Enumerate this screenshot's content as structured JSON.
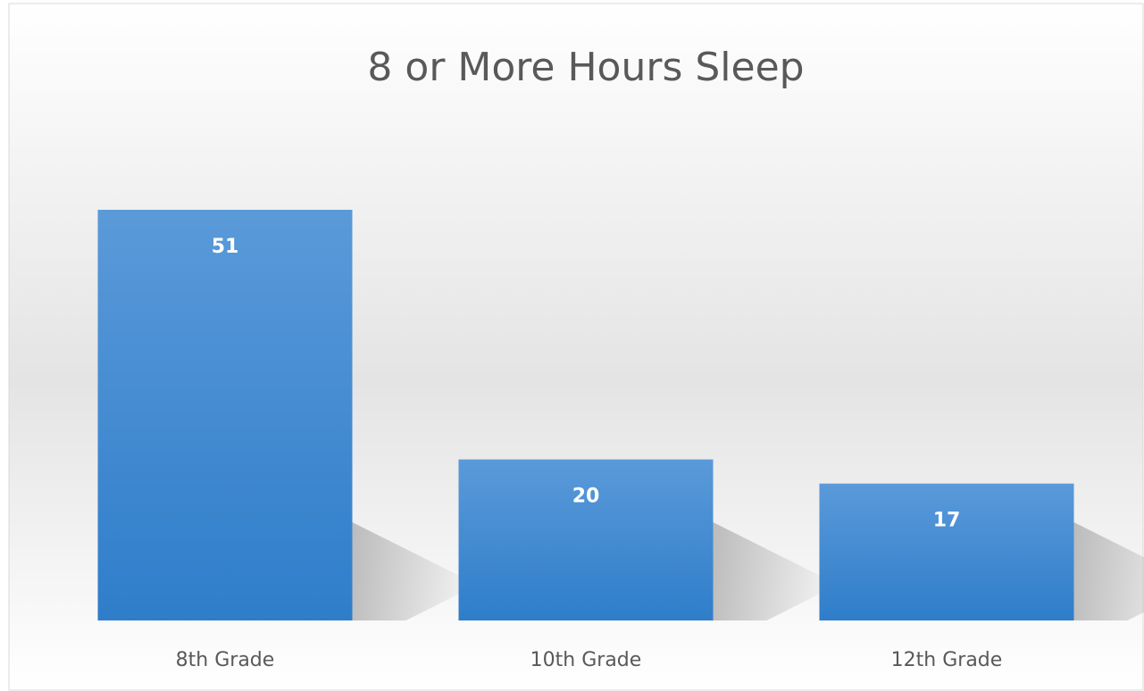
{
  "chart_data": {
    "type": "bar",
    "title": "8 or More Hours Sleep",
    "categories": [
      "8th Grade",
      "10th Grade",
      "12th Grade"
    ],
    "values": [
      51,
      20,
      17
    ],
    "color": "#4a8fd6"
  }
}
